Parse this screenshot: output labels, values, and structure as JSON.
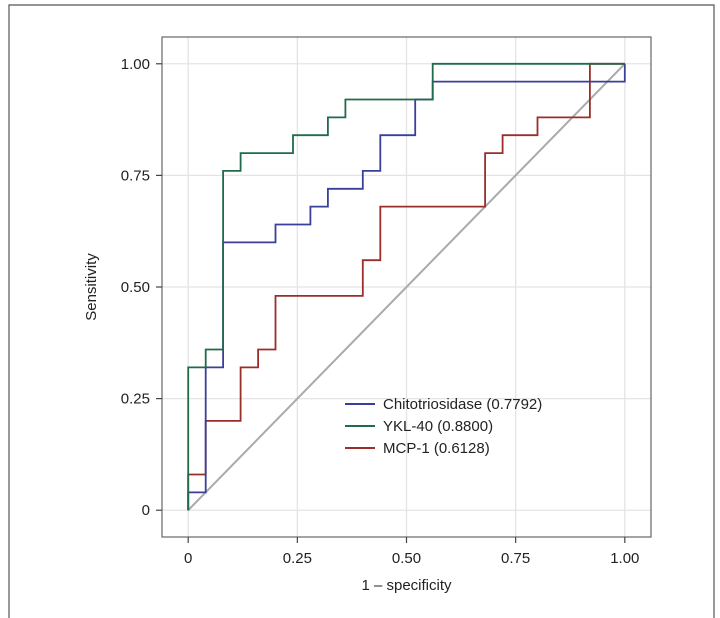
{
  "chart_data": {
    "type": "line",
    "title": "",
    "xlabel": "1 – specificity",
    "ylabel": "Sensitivity",
    "xlim": [
      -0.06,
      1.06
    ],
    "ylim": [
      -0.06,
      1.06
    ],
    "x_ticks": [
      0,
      0.25,
      0.5,
      0.75,
      1.0
    ],
    "x_tick_labels": [
      "0",
      "0.25",
      "0.50",
      "0.75",
      "1.00"
    ],
    "y_ticks": [
      0,
      0.25,
      0.5,
      0.75,
      1.0
    ],
    "y_tick_labels": [
      "0",
      "0.25",
      "0.50",
      "0.75",
      "1.00"
    ],
    "grid": true,
    "legend_position": "bottom-right",
    "reference_line": {
      "x": [
        0,
        1
      ],
      "y": [
        0,
        1
      ],
      "color": "#aaaaaa"
    },
    "series": [
      {
        "name": "Chitotriosidase (0.7792)",
        "color": "#3a3f9a",
        "x": [
          0,
          0,
          0.04,
          0.04,
          0.08,
          0.08,
          0.2,
          0.2,
          0.28,
          0.28,
          0.32,
          0.32,
          0.4,
          0.4,
          0.44,
          0.44,
          0.52,
          0.52,
          0.56,
          0.56,
          1.0,
          1.0
        ],
        "y": [
          0,
          0.04,
          0.04,
          0.32,
          0.32,
          0.6,
          0.6,
          0.64,
          0.64,
          0.68,
          0.68,
          0.72,
          0.72,
          0.76,
          0.76,
          0.84,
          0.84,
          0.92,
          0.92,
          0.96,
          0.96,
          1.0
        ]
      },
      {
        "name": "YKL-40 (0.8800)",
        "color": "#1f6b4a",
        "x": [
          0,
          0,
          0.04,
          0.04,
          0.08,
          0.08,
          0.12,
          0.12,
          0.24,
          0.24,
          0.32,
          0.32,
          0.36,
          0.36,
          0.56,
          0.56,
          1.0
        ],
        "y": [
          0,
          0.32,
          0.32,
          0.36,
          0.36,
          0.76,
          0.76,
          0.8,
          0.8,
          0.84,
          0.84,
          0.88,
          0.88,
          0.92,
          0.92,
          1.0,
          1.0
        ]
      },
      {
        "name": "MCP-1 (0.6128)",
        "color": "#9a2f2a",
        "x": [
          0,
          0,
          0.04,
          0.04,
          0.12,
          0.12,
          0.16,
          0.16,
          0.2,
          0.2,
          0.4,
          0.4,
          0.44,
          0.44,
          0.68,
          0.68,
          0.72,
          0.72,
          0.8,
          0.8,
          0.92,
          0.92,
          1.0
        ],
        "y": [
          0,
          0.08,
          0.08,
          0.2,
          0.2,
          0.32,
          0.32,
          0.36,
          0.36,
          0.48,
          0.48,
          0.56,
          0.56,
          0.68,
          0.68,
          0.8,
          0.8,
          0.84,
          0.84,
          0.88,
          0.88,
          1.0,
          1.0
        ]
      }
    ]
  }
}
